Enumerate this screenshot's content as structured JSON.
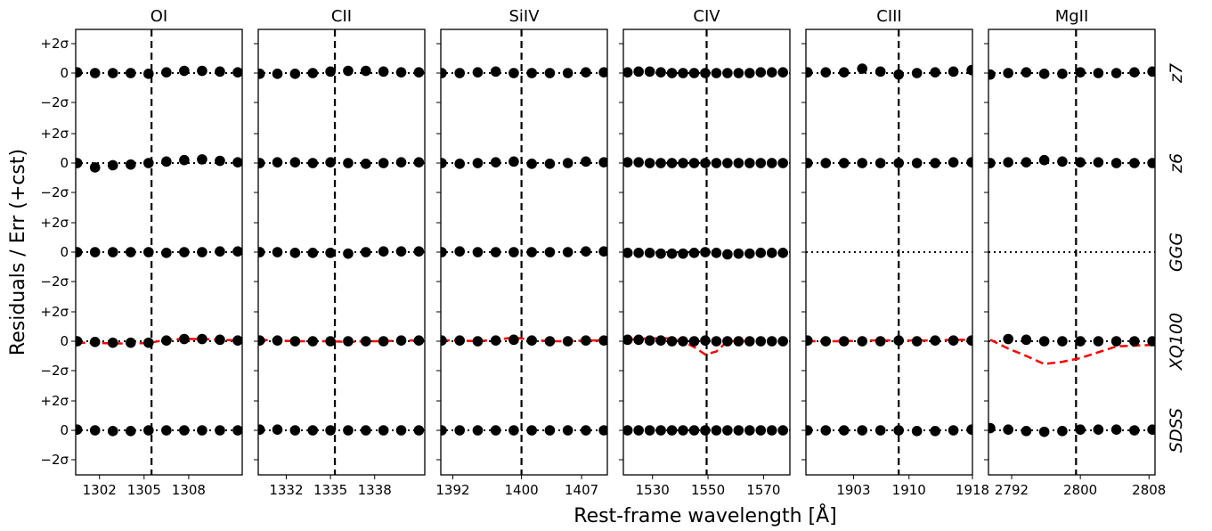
{
  "chart_data": {
    "type": "scatter",
    "ylabel": "Residuals / Err (+cst)",
    "xlabel": "Rest-frame wavelength [Å]",
    "row_labels": [
      "z7",
      "z6",
      "GGG",
      "XQ100",
      "SDSS"
    ],
    "y_tick_labels": [
      "+2σ",
      "0",
      "−2σ"
    ],
    "ylim": [
      -2.9,
      2.9
    ],
    "panels": [
      {
        "title": "OI",
        "line_center": 1305.5,
        "xlim": [
          1300.4,
          1311.6
        ],
        "x_ticks": [
          1302,
          1305,
          1308
        ],
        "x_tick_labels": [
          "1302",
          "1305",
          "1308"
        ],
        "rows": [
          {
            "x": [
              1300.5,
              1301.7,
              1302.9,
              1304.1,
              1305.3,
              1306.5,
              1307.7,
              1308.9,
              1310.1,
              1311.3
            ],
            "y": [
              0.05,
              0.0,
              0.0,
              0.0,
              -0.05,
              0.05,
              0.15,
              0.15,
              0.1,
              0.05
            ]
          },
          {
            "x": [
              1300.5,
              1301.7,
              1302.9,
              1304.1,
              1305.3,
              1306.5,
              1307.7,
              1308.9,
              1310.1,
              1311.3
            ],
            "y": [
              0.0,
              -0.3,
              -0.15,
              -0.1,
              0.0,
              0.1,
              0.2,
              0.25,
              0.15,
              0.05
            ]
          },
          {
            "x": [
              1300.5,
              1301.7,
              1302.9,
              1304.1,
              1305.3,
              1306.5,
              1307.7,
              1308.9,
              1310.1,
              1311.3
            ],
            "y": [
              0.0,
              0.0,
              0.0,
              0.0,
              0.0,
              -0.05,
              0.0,
              0.0,
              0.05,
              0.05
            ]
          },
          {
            "x": [
              1300.5,
              1301.7,
              1302.9,
              1304.1,
              1305.3,
              1306.5,
              1307.7,
              1308.9,
              1310.1,
              1311.3
            ],
            "y": [
              0.0,
              -0.05,
              -0.1,
              -0.1,
              -0.1,
              0.05,
              0.15,
              0.15,
              0.1,
              0.05
            ],
            "model": [
              -0.1,
              -0.12,
              -0.15,
              -0.15,
              -0.12,
              0.1,
              0.15,
              0.15,
              0.1,
              0.05
            ]
          },
          {
            "x": [
              1300.5,
              1301.7,
              1302.9,
              1304.1,
              1305.3,
              1306.5,
              1307.7,
              1308.9,
              1310.1,
              1311.3
            ],
            "y": [
              0.05,
              0.0,
              -0.05,
              -0.05,
              0.0,
              0.0,
              0.0,
              0.0,
              0.0,
              0.0
            ]
          }
        ]
      },
      {
        "title": "CII",
        "line_center": 1335.3,
        "xlim": [
          1330.1,
          1341.4
        ],
        "x_ticks": [
          1332,
          1335,
          1338
        ],
        "x_tick_labels": [
          "1332",
          "1335",
          "1338"
        ],
        "rows": [
          {
            "x": [
              1330.2,
              1331.4,
              1332.6,
              1333.8,
              1335.0,
              1336.2,
              1337.4,
              1338.6,
              1339.8,
              1341.0
            ],
            "y": [
              -0.05,
              -0.05,
              -0.05,
              0.0,
              0.1,
              0.15,
              0.15,
              0.1,
              0.05,
              0.05
            ]
          },
          {
            "x": [
              1330.2,
              1331.4,
              1332.6,
              1333.8,
              1335.0,
              1336.2,
              1337.4,
              1338.6,
              1339.8,
              1341.0
            ],
            "y": [
              0.0,
              0.05,
              0.05,
              0.0,
              0.05,
              0.0,
              -0.05,
              0.0,
              0.05,
              0.05
            ]
          },
          {
            "x": [
              1330.2,
              1331.4,
              1332.6,
              1333.8,
              1335.0,
              1336.2,
              1337.4,
              1338.6,
              1339.8,
              1341.0
            ],
            "y": [
              0.0,
              0.0,
              -0.05,
              -0.05,
              -0.05,
              -0.1,
              0.0,
              0.05,
              0.05,
              0.05
            ]
          },
          {
            "x": [
              1330.2,
              1331.4,
              1332.6,
              1333.8,
              1335.0,
              1336.2,
              1337.4,
              1338.6,
              1339.8,
              1341.0
            ],
            "y": [
              0.05,
              0.05,
              0.0,
              0.0,
              0.0,
              0.0,
              0.0,
              0.0,
              0.05,
              0.05
            ],
            "model": [
              0.1,
              0.05,
              0.0,
              0.0,
              0.0,
              -0.05,
              0.0,
              0.0,
              0.05,
              0.05
            ]
          },
          {
            "x": [
              1330.2,
              1331.4,
              1332.6,
              1333.8,
              1335.0,
              1336.2,
              1337.4,
              1338.6,
              1339.8,
              1341.0
            ],
            "y": [
              0.05,
              0.05,
              0.0,
              0.0,
              0.0,
              0.0,
              0.0,
              0.0,
              0.0,
              0.0
            ]
          }
        ]
      },
      {
        "title": "SiIV",
        "line_center": 1400.0,
        "xlim": [
          1390.6,
          1410.0
        ],
        "x_ticks": [
          1392,
          1400,
          1407
        ],
        "x_tick_labels": [
          "1392",
          "1400",
          "1407"
        ],
        "rows": [
          {
            "x": [
              1390.7,
              1392.8,
              1394.9,
              1397.0,
              1399.1,
              1401.2,
              1403.3,
              1405.4,
              1407.5,
              1409.6
            ],
            "y": [
              0.0,
              0.0,
              0.05,
              0.1,
              0.0,
              0.0,
              0.0,
              0.0,
              0.05,
              0.05
            ]
          },
          {
            "x": [
              1390.7,
              1392.8,
              1394.9,
              1397.0,
              1399.1,
              1401.2,
              1403.3,
              1405.4,
              1407.5,
              1409.6
            ],
            "y": [
              0.0,
              -0.05,
              0.0,
              0.05,
              0.1,
              -0.05,
              -0.05,
              0.0,
              0.1,
              0.05
            ]
          },
          {
            "x": [
              1390.7,
              1392.8,
              1394.9,
              1397.0,
              1399.1,
              1401.2,
              1403.3,
              1405.4,
              1407.5,
              1409.6
            ],
            "y": [
              0.0,
              0.05,
              0.0,
              0.0,
              0.0,
              0.0,
              0.0,
              0.0,
              0.05,
              0.05
            ]
          },
          {
            "x": [
              1390.7,
              1392.8,
              1394.9,
              1397.0,
              1399.1,
              1401.2,
              1403.3,
              1405.4,
              1407.5,
              1409.6
            ],
            "y": [
              0.05,
              0.05,
              0.0,
              0.05,
              0.1,
              0.05,
              0.0,
              0.0,
              0.05,
              0.05
            ],
            "model": [
              0.05,
              0.05,
              0.0,
              0.1,
              0.25,
              0.1,
              0.0,
              0.0,
              0.05,
              0.05
            ]
          },
          {
            "x": [
              1390.7,
              1392.8,
              1394.9,
              1397.0,
              1399.1,
              1401.2,
              1403.3,
              1405.4,
              1407.5,
              1409.6
            ],
            "y": [
              0.0,
              0.0,
              0.0,
              0.0,
              0.0,
              0.0,
              0.0,
              0.0,
              0.0,
              0.0
            ]
          }
        ]
      },
      {
        "title": "CIV",
        "line_center": 1549.5,
        "xlim": [
          1519.5,
          1579.5
        ],
        "x_ticks": [
          1530,
          1550,
          1570
        ],
        "x_tick_labels": [
          "1530",
          "1550",
          "1570"
        ],
        "rows": [
          {
            "x": [
              1521,
              1525,
              1529,
              1533,
              1537,
              1541,
              1545,
              1549,
              1553,
              1557,
              1561,
              1565,
              1569,
              1573,
              1577
            ],
            "y": [
              0.05,
              0.1,
              0.1,
              0.05,
              0.0,
              0.0,
              0.0,
              0.0,
              0.0,
              0.0,
              0.0,
              0.0,
              0.05,
              0.05,
              0.05
            ]
          },
          {
            "x": [
              1521,
              1525,
              1529,
              1533,
              1537,
              1541,
              1545,
              1549,
              1553,
              1557,
              1561,
              1565,
              1569,
              1573,
              1577
            ],
            "y": [
              0.05,
              0.05,
              0.0,
              0.0,
              0.0,
              0.0,
              0.0,
              0.0,
              0.0,
              0.0,
              0.0,
              0.0,
              0.0,
              0.0,
              0.0
            ]
          },
          {
            "x": [
              1521,
              1525,
              1529,
              1533,
              1537,
              1541,
              1545,
              1549,
              1553,
              1557,
              1561,
              1565,
              1569,
              1573,
              1577
            ],
            "y": [
              -0.05,
              -0.05,
              -0.05,
              -0.1,
              -0.1,
              -0.1,
              -0.05,
              0.0,
              -0.05,
              -0.15,
              -0.1,
              -0.1,
              -0.05,
              -0.05,
              -0.05
            ]
          },
          {
            "x": [
              1521,
              1525,
              1529,
              1533,
              1537,
              1541,
              1545,
              1549,
              1553,
              1557,
              1561,
              1565,
              1569,
              1573,
              1577
            ],
            "y": [
              0.1,
              0.1,
              0.05,
              0.05,
              0.0,
              0.0,
              0.0,
              0.05,
              0.0,
              0.0,
              0.0,
              0.0,
              0.0,
              0.0,
              0.0
            ],
            "model": [
              0.1,
              0.15,
              0.2,
              0.2,
              0.2,
              0.0,
              -0.4,
              -0.9,
              -0.7,
              0.0,
              0.0,
              0.0,
              0.0,
              0.0,
              0.0
            ]
          },
          {
            "x": [
              1521,
              1525,
              1529,
              1533,
              1537,
              1541,
              1545,
              1549,
              1553,
              1557,
              1561,
              1565,
              1569,
              1573,
              1577
            ],
            "y": [
              0.0,
              0.0,
              0.0,
              0.0,
              0.0,
              0.0,
              0.0,
              0.0,
              0.0,
              0.0,
              0.0,
              0.0,
              0.0,
              0.0,
              0.0
            ]
          }
        ]
      },
      {
        "title": "CIII",
        "line_center": 1908.7,
        "xlim": [
          1897.0,
          1918.0
        ],
        "x_ticks": [
          1903,
          1910,
          1918
        ],
        "x_tick_labels": [
          "1903",
          "1910",
          "1918"
        ],
        "rows": [
          {
            "x": [
              1897.2,
              1899.5,
              1901.8,
              1904.1,
              1906.4,
              1908.7,
              1911.0,
              1913.3,
              1915.6,
              1917.9
            ],
            "y": [
              0.05,
              0.05,
              0.05,
              0.3,
              0.1,
              -0.1,
              0.0,
              0.05,
              0.1,
              0.2
            ]
          },
          {
            "x": [
              1897.2,
              1899.5,
              1901.8,
              1904.1,
              1906.4,
              1908.7,
              1911.0,
              1913.3,
              1915.6,
              1917.9
            ],
            "y": [
              0.0,
              0.0,
              0.0,
              0.0,
              0.0,
              0.0,
              0.0,
              0.0,
              0.05,
              0.05
            ]
          },
          {
            "x": [
              1897.2,
              1899.5,
              1901.8,
              1904.1,
              1906.4,
              1908.7,
              1911.0,
              1913.3,
              1915.6,
              1917.9
            ],
            "y": []
          },
          {
            "x": [
              1897.2,
              1899.5,
              1901.8,
              1904.1,
              1906.4,
              1908.7,
              1911.0,
              1913.3,
              1915.6,
              1917.9
            ],
            "y": [
              0.05,
              0.0,
              0.0,
              0.0,
              0.0,
              0.05,
              0.0,
              0.05,
              0.05,
              0.05
            ],
            "model": [
              0.0,
              0.0,
              0.0,
              0.05,
              0.05,
              0.05,
              0.05,
              0.05,
              0.1,
              0.1
            ]
          },
          {
            "x": [
              1897.2,
              1899.5,
              1901.8,
              1904.1,
              1906.4,
              1908.7,
              1911.0,
              1913.3,
              1915.6,
              1917.9
            ],
            "y": [
              0.0,
              0.0,
              0.0,
              0.0,
              0.0,
              0.0,
              -0.05,
              -0.05,
              0.0,
              0.05
            ]
          }
        ]
      },
      {
        "title": "MgII",
        "line_center": 2799.5,
        "xlim": [
          2789.3,
          2808.7
        ],
        "x_ticks": [
          2792,
          2800,
          2808
        ],
        "x_tick_labels": [
          "2792",
          "2800",
          "2808"
        ],
        "rows": [
          {
            "x": [
              2789.5,
              2791.6,
              2793.7,
              2795.8,
              2797.9,
              2800.0,
              2802.1,
              2804.2,
              2806.3,
              2808.4
            ],
            "y": [
              -0.1,
              0.0,
              0.05,
              -0.05,
              -0.05,
              0.05,
              0.0,
              0.0,
              0.05,
              0.1
            ]
          },
          {
            "x": [
              2789.5,
              2791.6,
              2793.7,
              2795.8,
              2797.9,
              2800.0,
              2802.1,
              2804.2,
              2806.3,
              2808.4
            ],
            "y": [
              0.0,
              0.05,
              0.05,
              0.2,
              0.1,
              0.05,
              0.05,
              0.0,
              0.0,
              0.0
            ]
          },
          {
            "x": [
              2789.5,
              2791.6,
              2793.7,
              2795.8,
              2797.9,
              2800.0,
              2802.1,
              2804.2,
              2806.3,
              2808.4
            ],
            "y": []
          },
          {
            "x": [
              2789.5,
              2791.6,
              2793.7,
              2795.8,
              2797.9,
              2800.0,
              2802.1,
              2804.2,
              2806.3,
              2808.4
            ],
            "y": [
              null,
              0.15,
              0.1,
              0.0,
              0.0,
              0.0,
              0.0,
              0.0,
              0.0,
              0.0
            ],
            "model": [
              0.1,
              -0.5,
              -1.0,
              -1.55,
              -1.4,
              -1.15,
              -0.75,
              -0.35,
              -0.3,
              -0.25
            ]
          },
          {
            "x": [
              2789.5,
              2791.6,
              2793.7,
              2795.8,
              2797.9,
              2800.0,
              2802.1,
              2804.2,
              2806.3,
              2808.4
            ],
            "y": [
              0.15,
              0.05,
              -0.05,
              -0.1,
              -0.05,
              0.05,
              0.05,
              0.05,
              0.0,
              0.05
            ]
          }
        ]
      }
    ],
    "colors": {
      "points": "#000000",
      "model": "#ff0000",
      "center_line": "#000000"
    }
  }
}
